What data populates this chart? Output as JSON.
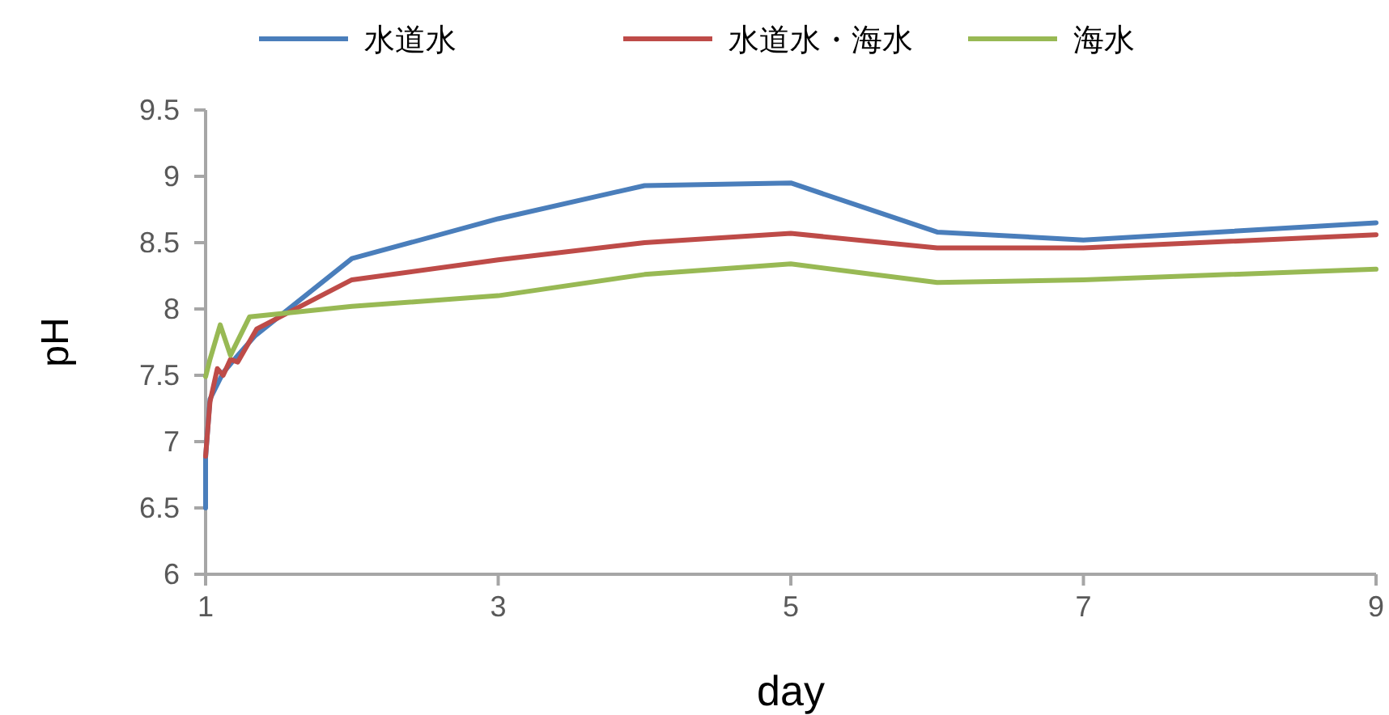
{
  "chart_data": {
    "type": "line",
    "xlabel": "day",
    "ylabel": "pH",
    "xlim": [
      1,
      9
    ],
    "ylim": [
      6,
      9.5
    ],
    "xticks": [
      1,
      3,
      5,
      7,
      9
    ],
    "yticks": [
      6,
      6.5,
      7,
      7.5,
      8,
      8.5,
      9,
      9.5
    ],
    "grid": false,
    "legend": "top",
    "marker": "none",
    "line_style": "solid",
    "series": [
      {
        "name": "水道水",
        "color": "#4a7ebb",
        "x": [
          1,
          1,
          1.03,
          1.12,
          1.22,
          1.34,
          2,
          3,
          4,
          5,
          6,
          7,
          9
        ],
        "values": [
          6.5,
          6.88,
          7.32,
          7.52,
          7.65,
          7.8,
          8.38,
          8.68,
          8.93,
          8.95,
          8.58,
          8.52,
          8.65
        ]
      },
      {
        "name": "水道水・海水",
        "color": "#be4b48",
        "x": [
          1,
          1.03,
          1.08,
          1.12,
          1.17,
          1.22,
          1.35,
          2,
          3,
          4,
          5,
          6,
          7,
          9
        ],
        "values": [
          6.89,
          7.3,
          7.55,
          7.5,
          7.62,
          7.6,
          7.85,
          8.22,
          8.37,
          8.5,
          8.57,
          8.46,
          8.46,
          8.56
        ]
      },
      {
        "name": "海水",
        "color": "#98b954",
        "x": [
          1,
          1.03,
          1.1,
          1.17,
          1.3,
          2,
          3,
          4,
          5,
          6,
          7,
          9
        ],
        "values": [
          7.49,
          7.62,
          7.88,
          7.65,
          7.94,
          8.02,
          8.1,
          8.26,
          8.34,
          8.2,
          8.22,
          8.3
        ]
      }
    ]
  }
}
